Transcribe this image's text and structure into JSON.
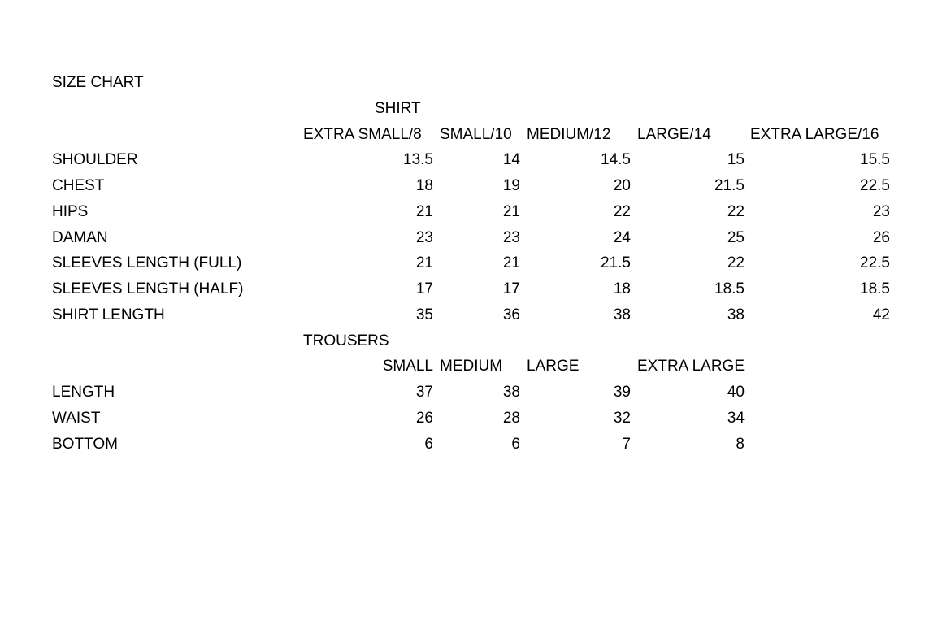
{
  "title": "SIZE CHART",
  "shirt": {
    "heading": "SHIRT",
    "sizes": [
      "EXTRA SMALL/8",
      "SMALL/10",
      "MEDIUM/12",
      "LARGE/14",
      "EXTRA LARGE/16"
    ],
    "rows": [
      {
        "label": "SHOULDER",
        "values": [
          "13.5",
          "14",
          "14.5",
          "15",
          "15.5"
        ]
      },
      {
        "label": "CHEST",
        "values": [
          "18",
          "19",
          "20",
          "21.5",
          "22.5"
        ]
      },
      {
        "label": "HIPS",
        "values": [
          "21",
          "21",
          "22",
          "22",
          "23"
        ]
      },
      {
        "label": "DAMAN",
        "values": [
          "23",
          "23",
          "24",
          "25",
          "26"
        ]
      },
      {
        "label": "SLEEVES LENGTH (FULL)",
        "values": [
          "21",
          "21",
          "21.5",
          "22",
          "22.5"
        ]
      },
      {
        "label": "SLEEVES LENGTH (HALF)",
        "values": [
          "17",
          "17",
          "18",
          "18.5",
          "18.5"
        ]
      },
      {
        "label": "SHIRT LENGTH",
        "values": [
          "35",
          "36",
          "38",
          "38",
          "42"
        ]
      }
    ]
  },
  "trousers": {
    "heading": "TROUSERS",
    "sizes": [
      "SMALL",
      "MEDIUM",
      "LARGE",
      "EXTRA LARGE"
    ],
    "rows": [
      {
        "label": "LENGTH",
        "values": [
          "37",
          "38",
          "39",
          "40"
        ]
      },
      {
        "label": "WAIST",
        "values": [
          "26",
          "28",
          "32",
          "34"
        ]
      },
      {
        "label": "BOTTOM",
        "values": [
          "6",
          "6",
          "7",
          "8"
        ]
      }
    ]
  }
}
